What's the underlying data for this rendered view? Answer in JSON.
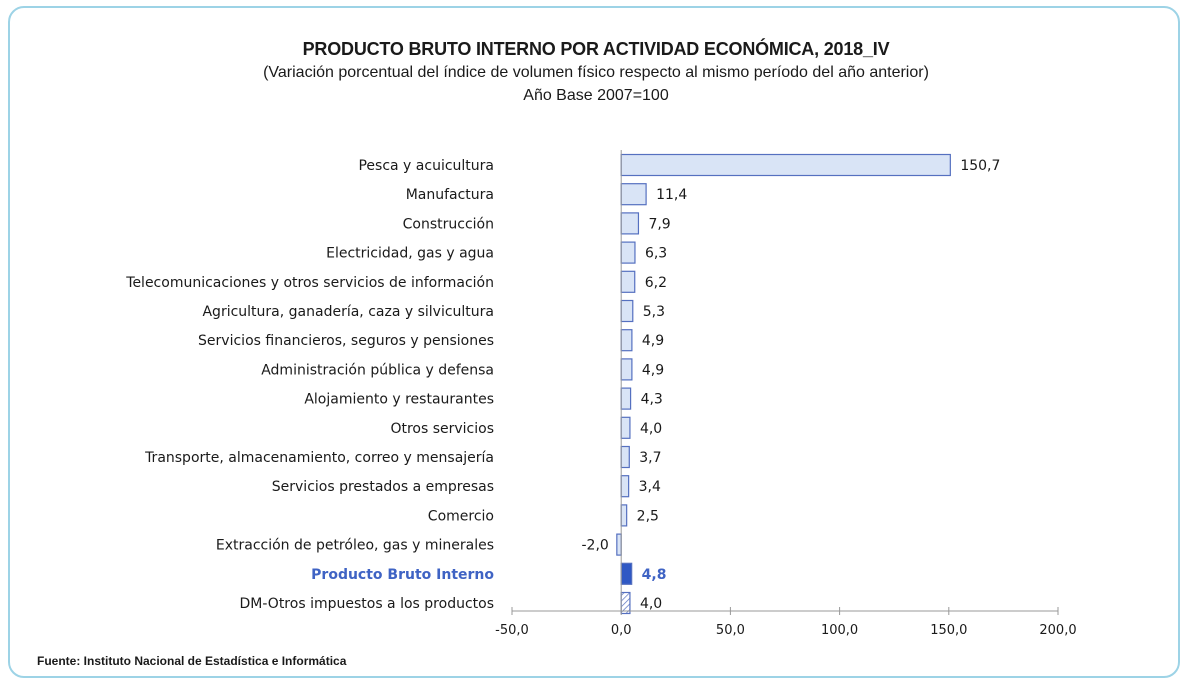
{
  "title": "PRODUCTO BRUTO INTERNO POR ACTIVIDAD ECONÓMICA, 2018_IV",
  "subtitle": "(Variación porcentual del índice de volumen físico respecto al mismo período del año anterior)",
  "base_note": "Año Base 2007=100",
  "source": "Fuente: Instituto Nacional de Estadística e Informática",
  "colors": {
    "bar_fill": "#d9e4f6",
    "bar_stroke": "#5570c0",
    "highlight_fill": "#2f58c4",
    "highlight_label": "#3f63c4",
    "frame": "#9dd3e6",
    "text": "#1a1a1a",
    "axis": "#999999"
  },
  "chart_data": {
    "type": "bar",
    "orientation": "horizontal",
    "categories": [
      "Pesca y acuicultura",
      "Manufactura",
      "Construcción",
      "Electricidad, gas y agua",
      "Telecomunicaciones y otros servicios de información",
      "Agricultura, ganadería, caza y silvicultura",
      "Servicios financieros, seguros y pensiones",
      "Administración pública y defensa",
      "Alojamiento y restaurantes",
      "Otros servicios",
      "Transporte, almacenamiento, correo y mensajería",
      "Servicios prestados a empresas",
      "Comercio",
      "Extracción de petróleo, gas y minerales",
      "Producto Bruto Interno",
      "DM-Otros impuestos a los productos"
    ],
    "values": [
      150.7,
      11.4,
      7.9,
      6.3,
      6.2,
      5.3,
      4.9,
      4.9,
      4.3,
      4.0,
      3.7,
      3.4,
      2.5,
      -2.0,
      4.8,
      4.0
    ],
    "value_labels": [
      "150,7",
      "11,4",
      "7,9",
      "6,3",
      "6,2",
      "5,3",
      "4,9",
      "4,9",
      "4,3",
      "4,0",
      "3,7",
      "3,4",
      "2,5",
      "-2,0",
      "4,8",
      "4,0"
    ],
    "highlight": "Producto Bruto Interno",
    "patterned": "DM-Otros impuestos a los productos",
    "xlim": [
      -50,
      200
    ],
    "xticks": [
      -50,
      0,
      50,
      100,
      150,
      200
    ],
    "xtick_labels": [
      "-50,0",
      "0,0",
      "50,0",
      "100,0",
      "150,0",
      "200,0"
    ],
    "grid": false
  }
}
